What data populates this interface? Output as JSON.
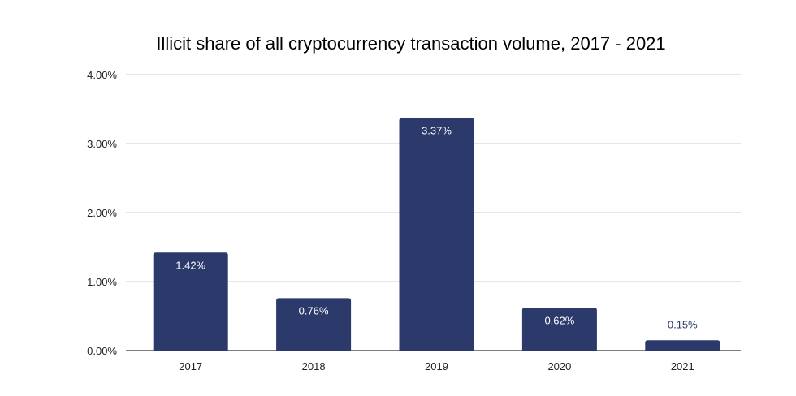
{
  "chart_data": {
    "type": "bar",
    "title": "Illicit share of all cryptocurrency transaction volume, 2017 - 2021",
    "xlabel": "",
    "ylabel": "",
    "categories": [
      "2017",
      "2018",
      "2019",
      "2020",
      "2021"
    ],
    "values": [
      1.42,
      0.76,
      3.37,
      0.62,
      0.15
    ],
    "data_labels": [
      "1.42%",
      "0.76%",
      "3.37%",
      "0.62%",
      "0.15%"
    ],
    "ylim": [
      0,
      4
    ],
    "yticks": [
      0,
      1,
      2,
      3,
      4
    ],
    "ytick_labels": [
      "0.00%",
      "1.00%",
      "2.00%",
      "3.00%",
      "4.00%"
    ],
    "grid": true,
    "legend": "none",
    "colors": {
      "bar": "#2b396b",
      "label_inside": "#ffffff",
      "label_outside": "#2b396b",
      "grid": "#cccccc",
      "axis": "#333333"
    }
  }
}
